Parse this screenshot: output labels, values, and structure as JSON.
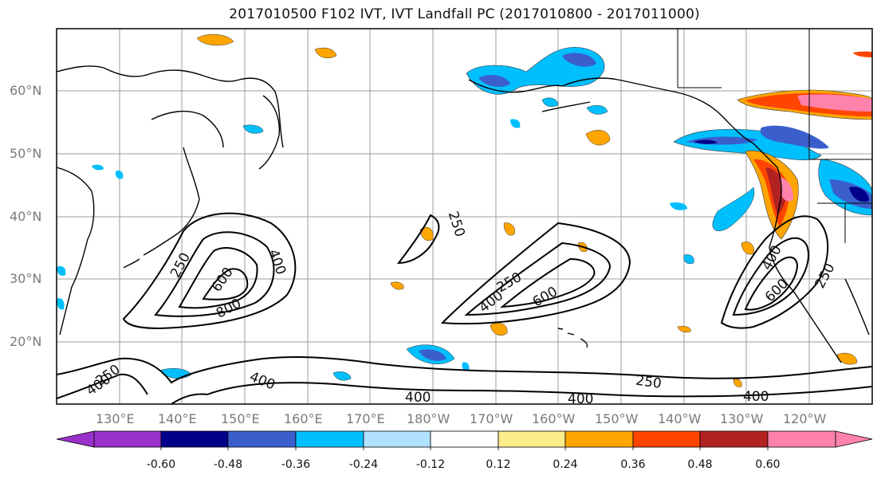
{
  "title": "2017010500 F102 IVT, IVT Landfall PC (2017010800 - 2017011000)",
  "lat_labels": [
    "60°N",
    "50°N",
    "40°N",
    "30°N",
    "20°N"
  ],
  "lon_labels": [
    "130°E",
    "140°E",
    "150°E",
    "160°E",
    "170°E",
    "180°W",
    "170°W",
    "160°W",
    "150°W",
    "140°W",
    "130°W",
    "120°W"
  ],
  "contour_labels": [
    "250",
    "400",
    "600",
    "800",
    "250",
    "400",
    "600",
    "250",
    "400",
    "600",
    "250",
    "250",
    "400",
    "400",
    "400",
    "250",
    "400",
    "400"
  ],
  "colorbar": {
    "ticks": [
      "-0.60",
      "-0.48",
      "-0.36",
      "-0.24",
      "-0.12",
      "0.12",
      "0.24",
      "0.36",
      "0.48",
      "0.60"
    ],
    "colors": [
      "#9932cc",
      "#00008b",
      "#3a5fcd",
      "#00bfff",
      "#b0e2ff",
      "#ffffff",
      "#ffec8b",
      "#ffa500",
      "#ff4500",
      "#b22222",
      "#ff82ab",
      "#ff82ab"
    ]
  }
}
